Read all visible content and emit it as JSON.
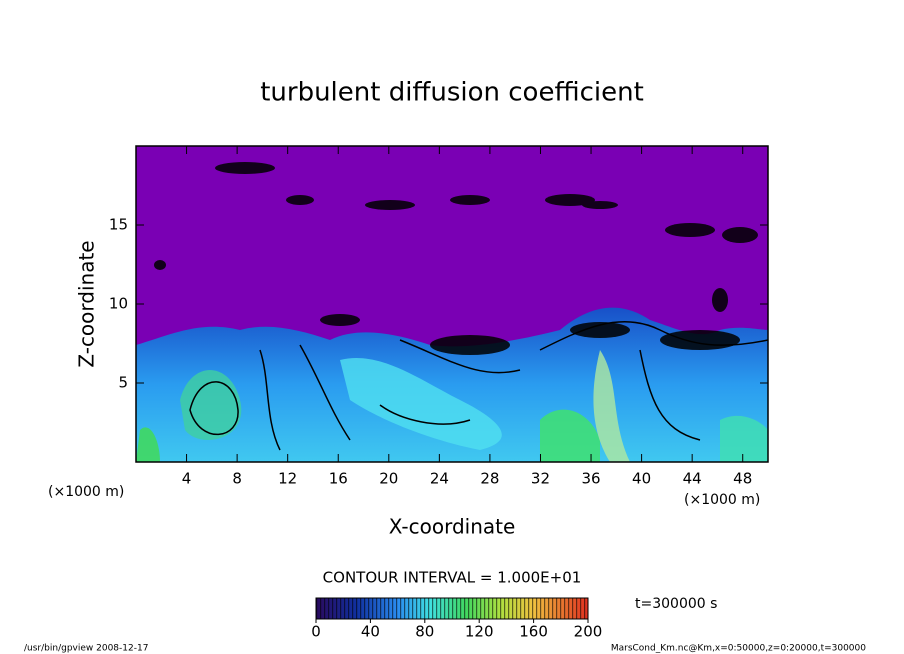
{
  "chart_data": {
    "type": "contour",
    "title": "turbulent diffusion coefficient",
    "x_label": "X-coordinate",
    "y_label": "Z-coordinate",
    "x_unit": "(×1000 m)",
    "y_unit": "(×1000 m)",
    "xlim": [
      0,
      50
    ],
    "ylim": [
      0,
      20
    ],
    "xticks": [
      4,
      8,
      12,
      16,
      20,
      24,
      28,
      32,
      36,
      40,
      44,
      48
    ],
    "yticks": [
      5,
      10,
      15
    ],
    "contour_interval": "CONTOUR INTERVAL = 1.000E+01",
    "clim": [
      0,
      200
    ],
    "cticks": [
      0,
      40,
      80,
      120,
      160,
      200
    ],
    "time": "t=300000 s",
    "footer_left": "/usr/bin/gpview  2008-12-17",
    "footer_right": "MarsCond_Km.nc@Km,x=0:50000,z=0:20000,t=300000"
  }
}
